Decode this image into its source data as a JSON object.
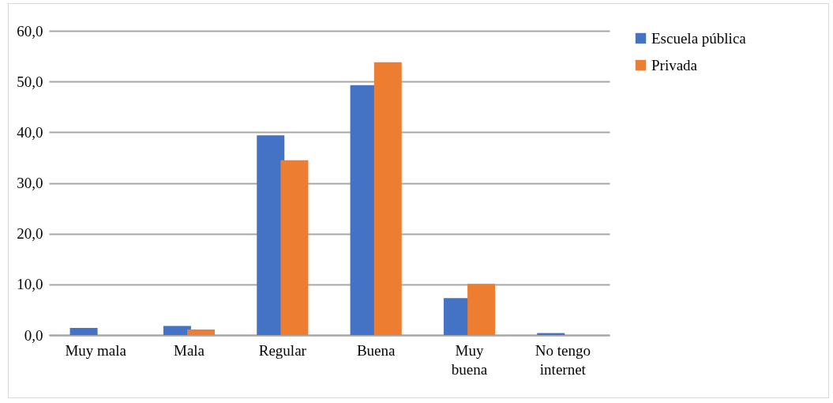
{
  "chart_data": {
    "type": "bar",
    "categories": [
      "Muy mala",
      "Mala",
      "Regular",
      "Buena",
      "Muy buena",
      "No tengo internet"
    ],
    "series": [
      {
        "name": "Escuela pública",
        "color": "#4472c4",
        "values": [
          1.4,
          1.8,
          39.4,
          49.3,
          7.3,
          0.4
        ]
      },
      {
        "name": "Privada",
        "color": "#ed7d31",
        "values": [
          null,
          1.1,
          34.5,
          53.8,
          10.1,
          null
        ]
      }
    ],
    "ylim": [
      0,
      60
    ],
    "yticks": [
      {
        "value": 0,
        "label": "0,0"
      },
      {
        "value": 10,
        "label": "10,0"
      },
      {
        "value": 20,
        "label": "20,0"
      },
      {
        "value": 30,
        "label": "30,0"
      },
      {
        "value": 40,
        "label": "40,0"
      },
      {
        "value": 50,
        "label": "50,0"
      },
      {
        "value": 60,
        "label": "60,0"
      }
    ],
    "grid": "y",
    "legend": "right"
  }
}
